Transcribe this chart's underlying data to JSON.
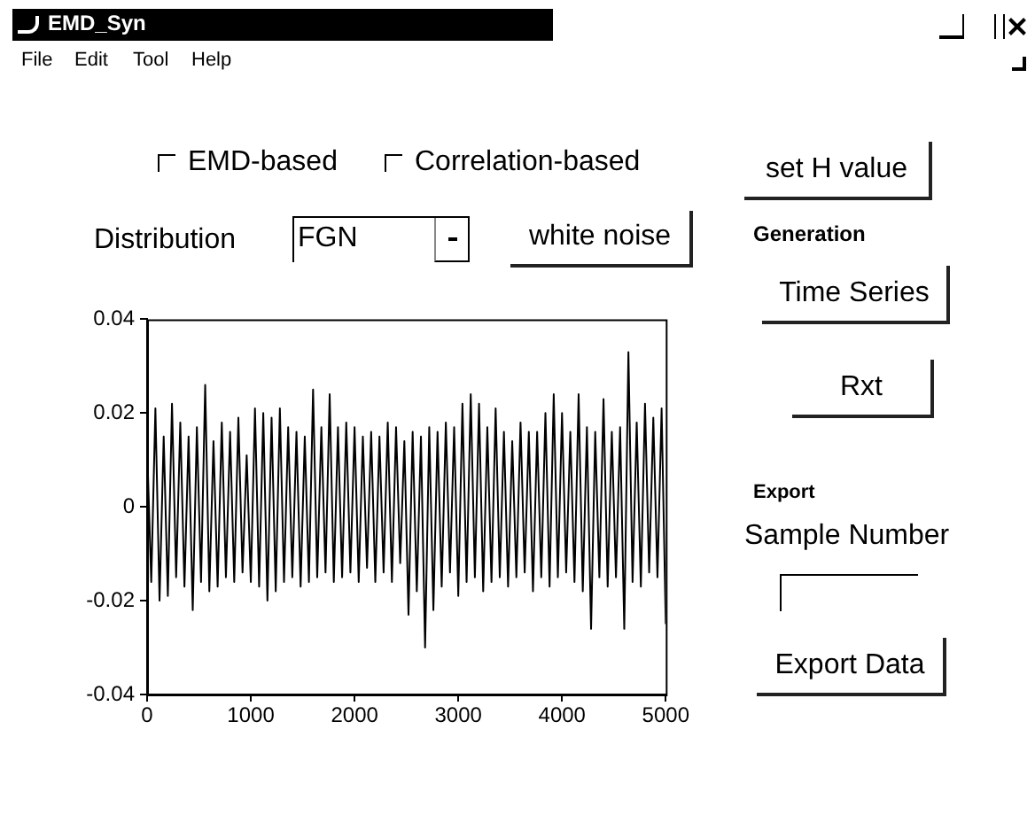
{
  "chart_data": {
    "type": "line",
    "title": "EMD_Syn",
    "annotations": [
      "File",
      "Edit",
      "Tool",
      "Help",
      "EMD-based",
      "Correlation-based",
      "set H value",
      "Distribution",
      "FGN",
      "white noise",
      "Generation",
      "Time Series",
      "Rxt",
      "Export",
      "Sample Number",
      "Export Data"
    ],
    "x": [
      0,
      40,
      80,
      120,
      160,
      200,
      240,
      280,
      320,
      360,
      400,
      440,
      480,
      520,
      560,
      600,
      640,
      680,
      720,
      760,
      800,
      840,
      880,
      920,
      960,
      1000,
      1040,
      1080,
      1120,
      1160,
      1200,
      1240,
      1280,
      1320,
      1360,
      1400,
      1440,
      1480,
      1520,
      1560,
      1600,
      1640,
      1680,
      1720,
      1760,
      1800,
      1840,
      1880,
      1920,
      1960,
      2000,
      2040,
      2080,
      2120,
      2160,
      2200,
      2240,
      2280,
      2320,
      2360,
      2400,
      2440,
      2480,
      2520,
      2560,
      2600,
      2640,
      2680,
      2720,
      2760,
      2800,
      2840,
      2880,
      2920,
      2960,
      3000,
      3040,
      3080,
      3120,
      3160,
      3200,
      3240,
      3280,
      3320,
      3360,
      3400,
      3440,
      3480,
      3520,
      3560,
      3600,
      3640,
      3680,
      3720,
      3760,
      3800,
      3840,
      3880,
      3920,
      3960,
      4000,
      4040,
      4080,
      4120,
      4160,
      4200,
      4240,
      4280,
      4320,
      4360,
      4400,
      4440,
      4480,
      4520,
      4560,
      4600,
      4640,
      4680,
      4720,
      4760,
      4800,
      4840,
      4880,
      4920,
      4960,
      5000
    ],
    "series": [
      {
        "color": "#000000",
        "values": [
          0.013,
          -0.016,
          0.021,
          -0.02,
          0.015,
          -0.019,
          0.022,
          -0.015,
          0.018,
          -0.017,
          0.015,
          -0.022,
          0.017,
          -0.016,
          0.026,
          -0.018,
          0.014,
          -0.017,
          0.018,
          -0.015,
          0.016,
          -0.016,
          0.019,
          -0.014,
          0.011,
          -0.016,
          0.021,
          -0.017,
          0.02,
          -0.02,
          0.019,
          -0.018,
          0.021,
          -0.016,
          0.017,
          -0.015,
          0.016,
          -0.017,
          0.015,
          -0.016,
          0.025,
          -0.015,
          0.017,
          -0.014,
          0.024,
          -0.016,
          0.017,
          -0.015,
          0.018,
          -0.014,
          0.017,
          -0.016,
          0.015,
          -0.013,
          0.016,
          -0.016,
          0.015,
          -0.014,
          0.018,
          -0.016,
          0.017,
          -0.012,
          0.014,
          -0.023,
          0.016,
          -0.018,
          0.015,
          -0.03,
          0.017,
          -0.022,
          0.016,
          -0.017,
          0.018,
          -0.014,
          0.017,
          -0.019,
          0.022,
          -0.016,
          0.024,
          -0.015,
          0.022,
          -0.018,
          0.017,
          -0.016,
          0.021,
          -0.015,
          0.016,
          -0.017,
          0.014,
          -0.015,
          0.018,
          -0.014,
          0.016,
          -0.018,
          0.016,
          -0.015,
          0.02,
          -0.017,
          0.024,
          -0.015,
          0.02,
          -0.014,
          0.016,
          -0.016,
          0.024,
          -0.018,
          0.017,
          -0.026,
          0.016,
          -0.015,
          0.023,
          -0.017,
          0.016,
          -0.015,
          0.017,
          -0.026,
          0.033,
          -0.016,
          0.018,
          -0.017,
          0.022,
          -0.014,
          0.019,
          -0.015,
          0.021,
          -0.025
        ]
      }
    ],
    "xlim": [
      0,
      5000
    ],
    "xticks": [
      0,
      1000,
      2000,
      3000,
      4000,
      5000
    ],
    "ylim": [
      -0.04,
      0.04
    ],
    "yticks": [
      -0.04,
      -0.02,
      0,
      0.02,
      0.04
    ],
    "marker": "none",
    "line_style": "solid"
  }
}
